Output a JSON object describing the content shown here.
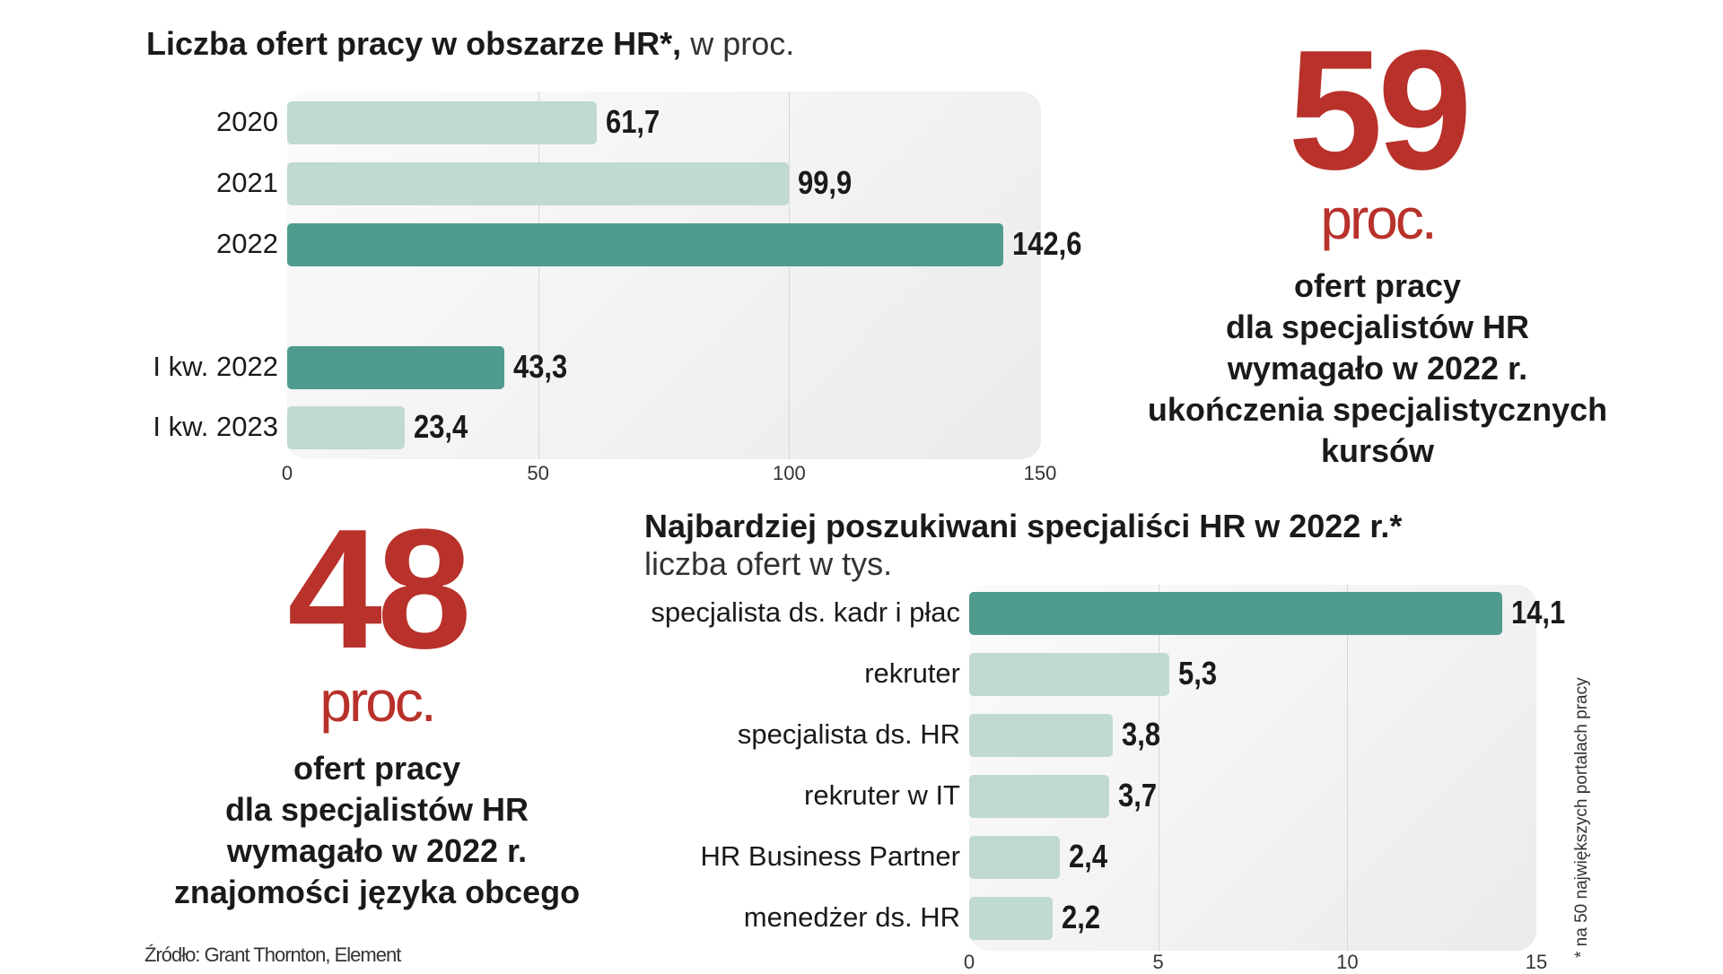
{
  "colors": {
    "bar_light": "#c0d9d3",
    "bar_dark": "#4f9c8e",
    "accent_red": "#b8312a"
  },
  "chart_data": [
    {
      "type": "bar",
      "orientation": "horizontal",
      "title": "Liczba ofert pracy w obszarze HR*,",
      "subtitle": "w proc.",
      "categories": [
        "2020",
        "2021",
        "2022",
        "I kw. 2022",
        "I kw. 2023"
      ],
      "values": [
        61.7,
        99.9,
        142.6,
        43.3,
        23.4
      ],
      "value_labels": [
        "61,7",
        "99,9",
        "142,6",
        "43,3",
        "23,4"
      ],
      "highlight": [
        false,
        false,
        true,
        true,
        false
      ],
      "xlim": [
        0,
        150
      ],
      "xticks": [
        "0",
        "50",
        "100",
        "150"
      ],
      "grid": true
    },
    {
      "type": "bar",
      "orientation": "horizontal",
      "title": "Najbardziej poszukiwani specjaliści HR w 2022 r.*",
      "subtitle": "liczba ofert w tys.",
      "categories": [
        "specjalista ds. kadr i płac",
        "rekruter",
        "specjalista ds. HR",
        "rekruter w IT",
        "HR Business Partner",
        "menedżer ds. HR"
      ],
      "values": [
        14.1,
        5.3,
        3.8,
        3.7,
        2.4,
        2.2
      ],
      "value_labels": [
        "14,1",
        "5,3",
        "3,8",
        "3,7",
        "2,4",
        "2,2"
      ],
      "highlight": [
        true,
        false,
        false,
        false,
        false,
        false
      ],
      "xlim": [
        0,
        15
      ],
      "xticks": [
        "0",
        "5",
        "10",
        "15"
      ],
      "grid": true
    }
  ],
  "stat_top": {
    "number": "59",
    "unit": "proc.",
    "lines": [
      "ofert pracy",
      "dla specjalistów HR",
      "wymagało w 2022 r.",
      "ukończenia specjalistycznych",
      "kursów"
    ]
  },
  "stat_bottom": {
    "number": "48",
    "unit": "proc.",
    "lines": [
      "ofert pracy",
      "dla specjalistów HR",
      "wymagało w 2022 r.",
      "znajomości języka obcego"
    ]
  },
  "footnote": "* na 50 największych portalach pracy",
  "source": "Źródło: Grant Thornton, Element"
}
